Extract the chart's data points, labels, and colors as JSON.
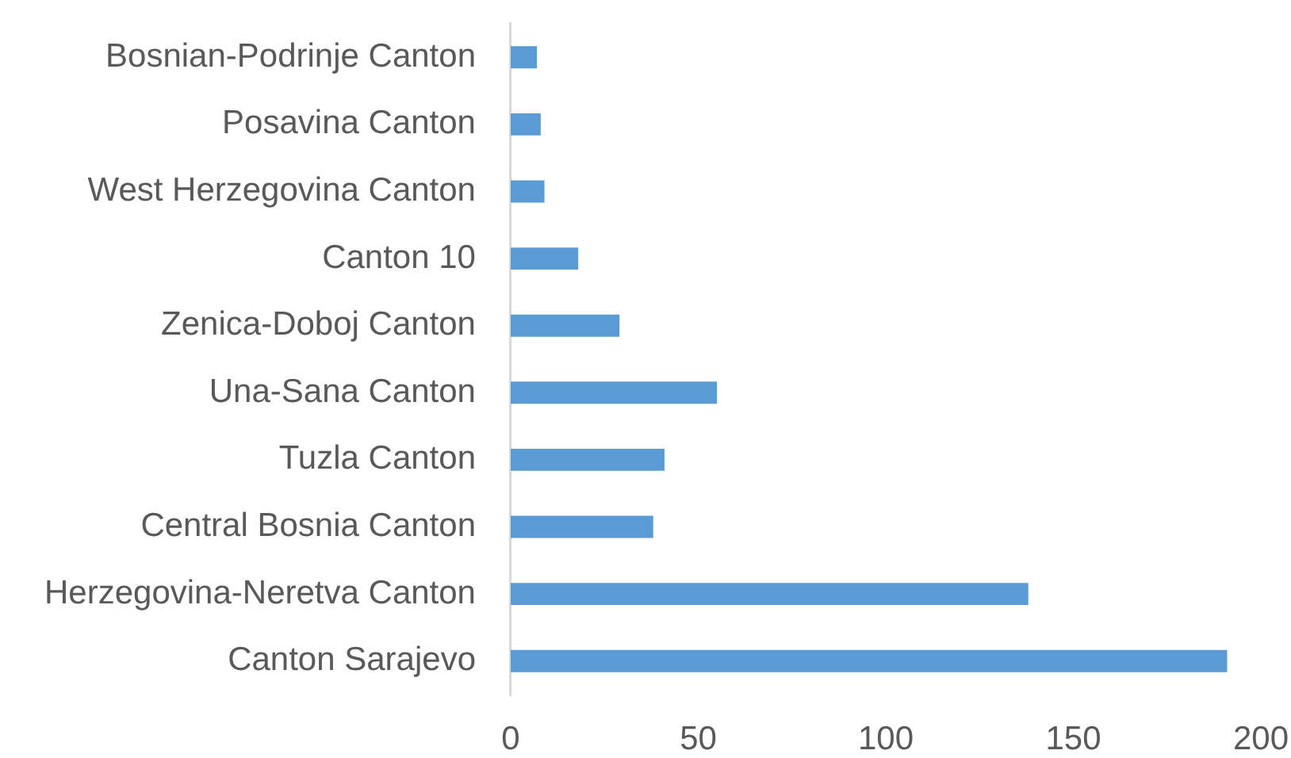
{
  "chart_data": {
    "type": "bar",
    "orientation": "horizontal",
    "categories": [
      "Bosnian-Podrinje Canton",
      "Posavina Canton",
      "West Herzegovina Canton",
      "Canton 10",
      "Zenica-Doboj Canton",
      "Una-Sana Canton",
      "Tuzla Canton",
      "Central Bosnia Canton",
      "Herzegovina-Neretva Canton",
      "Canton Sarajevo"
    ],
    "values": [
      7,
      8,
      9,
      18,
      29,
      55,
      41,
      38,
      138,
      191
    ],
    "color": "#5b9bd5",
    "xlim": [
      0,
      200
    ],
    "xticks": [
      0,
      50,
      100,
      150,
      200
    ]
  }
}
